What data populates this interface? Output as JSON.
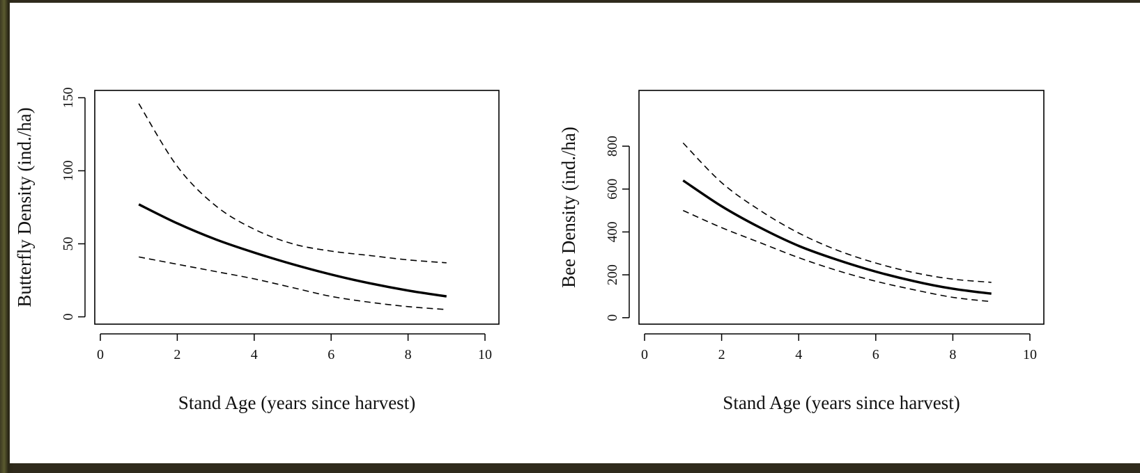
{
  "chart_data": [
    {
      "type": "line",
      "xlabel": "Stand Age (years since harvest)",
      "ylabel": "Butterfly Density (ind./ha)",
      "xlim": [
        0,
        10
      ],
      "ylim": [
        -5,
        155
      ],
      "xticks": [
        "0",
        "2",
        "4",
        "6",
        "8",
        "10"
      ],
      "yticks": [
        "0",
        "50",
        "100",
        "150"
      ],
      "grid": false,
      "series": [
        {
          "style": "solid",
          "x": [
            1,
            2,
            3,
            4,
            5,
            6,
            7,
            8,
            9
          ],
          "y": [
            77,
            64,
            53,
            44,
            36,
            29,
            23,
            18,
            14
          ]
        },
        {
          "style": "dashed",
          "x": [
            1,
            2,
            3,
            4,
            5,
            6,
            7,
            8,
            9
          ],
          "y": [
            146,
            103,
            76,
            60,
            50,
            45,
            42,
            39,
            37
          ]
        },
        {
          "style": "dashed",
          "x": [
            1,
            2,
            3,
            4,
            5,
            6,
            7,
            8,
            9
          ],
          "y": [
            41,
            36,
            31,
            26,
            20,
            14,
            10,
            7,
            5
          ]
        }
      ]
    },
    {
      "type": "line",
      "xlabel": "Stand Age (years since harvest)",
      "ylabel": "Bee Density (ind./ha)",
      "xlim": [
        0,
        10
      ],
      "ylim": [
        -30,
        1060
      ],
      "xticks": [
        "0",
        "2",
        "4",
        "6",
        "8",
        "10"
      ],
      "yticks": [
        "0",
        "200",
        "400",
        "600",
        "800"
      ],
      "grid": false,
      "series": [
        {
          "style": "solid",
          "x": [
            1,
            2,
            3,
            4,
            5,
            6,
            7,
            8,
            9
          ],
          "y": [
            640,
            520,
            420,
            335,
            270,
            215,
            170,
            135,
            112
          ]
        },
        {
          "style": "dashed",
          "x": [
            1,
            2,
            3,
            4,
            5,
            6,
            7,
            8,
            9
          ],
          "y": [
            815,
            630,
            500,
            395,
            315,
            255,
            210,
            180,
            165
          ]
        },
        {
          "style": "dashed",
          "x": [
            1,
            2,
            3,
            4,
            5,
            6,
            7,
            8,
            9
          ],
          "y": [
            500,
            420,
            350,
            280,
            220,
            170,
            130,
            95,
            75
          ]
        }
      ]
    }
  ]
}
